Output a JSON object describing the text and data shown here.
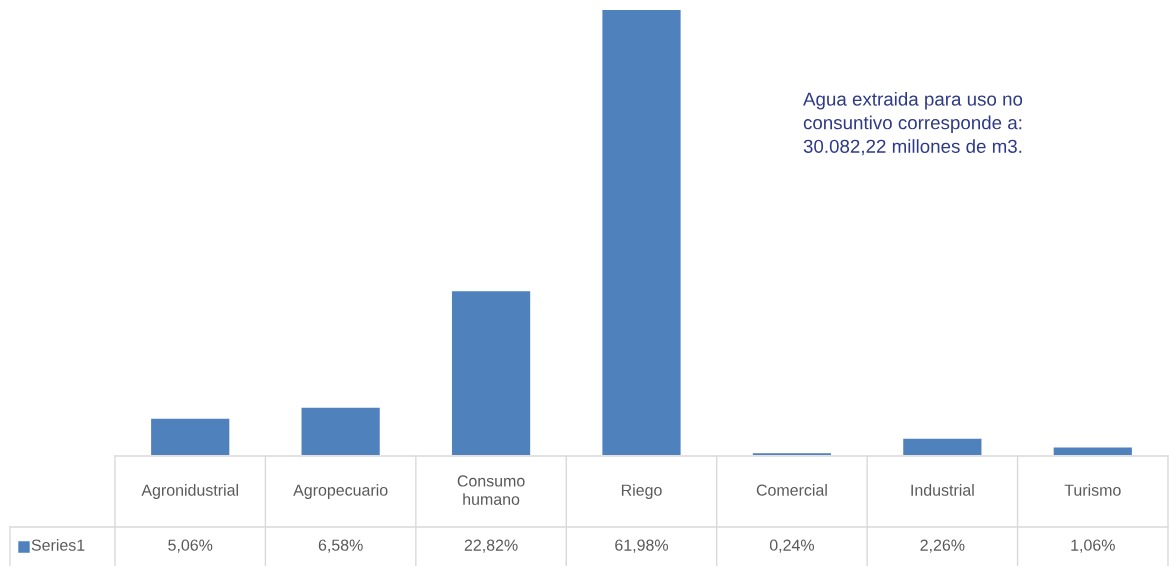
{
  "chart_data": {
    "type": "bar",
    "categories": [
      "Agronidustrial",
      "Agropecuario",
      "Consumo humano",
      "Riego",
      "Comercial",
      "Industrial",
      "Turismo"
    ],
    "series": [
      {
        "name": "Series1",
        "color": "#4f81bd",
        "values": [
          5.06,
          6.58,
          22.82,
          61.98,
          0.24,
          2.26,
          1.06
        ],
        "value_labels": [
          "5,06%",
          "6,58%",
          "22,82%",
          "61,98%",
          "0,24%",
          "2,26%",
          "1,06%"
        ]
      }
    ],
    "annotations": [
      "Agua extraida para uso no\nconsuntivo corresponde a:\n30.082,22 millones de m3."
    ]
  }
}
